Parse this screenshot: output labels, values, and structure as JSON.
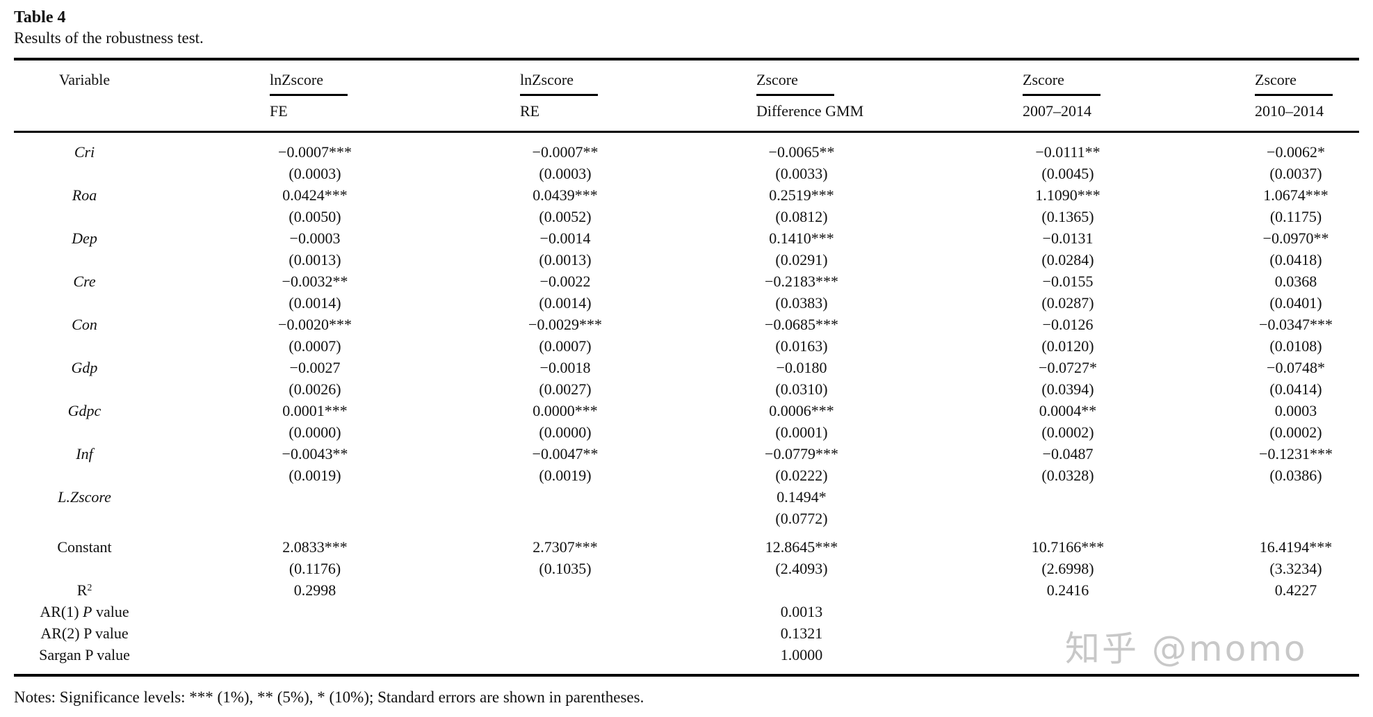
{
  "title": "Table 4",
  "subtitle": "Results of the robustness test.",
  "notes": "Notes: Significance levels: *** (1%), ** (5%), * (10%); Standard errors are shown in parentheses.",
  "watermark": "知乎 @momo",
  "table": {
    "variable_header": "Variable",
    "models": [
      {
        "dep": "lnZscore",
        "spec": "FE"
      },
      {
        "dep": "lnZscore",
        "spec": "RE"
      },
      {
        "dep": "Zscore",
        "spec": "Difference GMM"
      },
      {
        "dep": "Zscore",
        "spec": "2007–2014"
      },
      {
        "dep": "Zscore",
        "spec": "2010–2014"
      }
    ],
    "rows": [
      {
        "variable": "Cri",
        "italic": true,
        "coef": [
          "−0.0007***",
          "−0.0007**",
          "−0.0065**",
          "−0.0111**",
          "−0.0062*"
        ],
        "se": [
          "(0.0003)",
          "(0.0003)",
          "(0.0033)",
          "(0.0045)",
          "(0.0037)"
        ]
      },
      {
        "variable": "Roa",
        "italic": true,
        "coef": [
          "0.0424***",
          "0.0439***",
          "0.2519***",
          "1.1090***",
          "1.0674***"
        ],
        "se": [
          "(0.0050)",
          "(0.0052)",
          "(0.0812)",
          "(0.1365)",
          "(0.1175)"
        ]
      },
      {
        "variable": "Dep",
        "italic": true,
        "coef": [
          "−0.0003",
          "−0.0014",
          "0.1410***",
          "−0.0131",
          "−0.0970**"
        ],
        "se": [
          "(0.0013)",
          "(0.0013)",
          "(0.0291)",
          "(0.0284)",
          "(0.0418)"
        ]
      },
      {
        "variable": "Cre",
        "italic": true,
        "coef": [
          "−0.0032**",
          "−0.0022",
          "−0.2183***",
          "−0.0155",
          "0.0368"
        ],
        "se": [
          "(0.0014)",
          "(0.0014)",
          "(0.0383)",
          "(0.0287)",
          "(0.0401)"
        ]
      },
      {
        "variable": "Con",
        "italic": true,
        "coef": [
          "−0.0020***",
          "−0.0029***",
          "−0.0685***",
          "−0.0126",
          "−0.0347***"
        ],
        "se": [
          "(0.0007)",
          "(0.0007)",
          "(0.0163)",
          "(0.0120)",
          "(0.0108)"
        ]
      },
      {
        "variable": "Gdp",
        "italic": true,
        "coef": [
          "−0.0027",
          "−0.0018",
          "−0.0180",
          "−0.0727*",
          "−0.0748*"
        ],
        "se": [
          "(0.0026)",
          "(0.0027)",
          "(0.0310)",
          "(0.0394)",
          "(0.0414)"
        ]
      },
      {
        "variable": "Gdpc",
        "italic": true,
        "coef": [
          "0.0001***",
          "0.0000***",
          "0.0006***",
          "0.0004**",
          "0.0003"
        ],
        "se": [
          "(0.0000)",
          "(0.0000)",
          "(0.0001)",
          "(0.0002)",
          "(0.0002)"
        ]
      },
      {
        "variable": "Inf",
        "italic": true,
        "coef": [
          "−0.0043**",
          "−0.0047**",
          "−0.0779***",
          "−0.0487",
          "−0.1231***"
        ],
        "se": [
          "(0.0019)",
          "(0.0019)",
          "(0.0222)",
          "(0.0328)",
          "(0.0386)"
        ]
      },
      {
        "variable": "L.Zscore",
        "italic": true,
        "coef": [
          "",
          "",
          "0.1494*",
          "",
          ""
        ],
        "se": [
          "",
          "",
          "(0.0772)",
          "",
          ""
        ]
      },
      {
        "variable": "Constant",
        "italic": false,
        "coef": [
          "2.0833***",
          "2.7307***",
          "12.8645***",
          "10.7166***",
          "16.4194***"
        ],
        "se": [
          "(0.1176)",
          "(0.1035)",
          "(2.4093)",
          "(2.6998)",
          "(3.3234)"
        ]
      }
    ],
    "stat_rows": [
      {
        "label": {
          "pre": "R",
          "sup": "2"
        },
        "values": [
          "0.2998",
          "",
          "",
          "0.2416",
          "0.4227"
        ]
      },
      {
        "label": {
          "pre": "AR(1) ",
          "italic": "P",
          "post": " value"
        },
        "values": [
          "",
          "",
          "0.0013",
          "",
          ""
        ]
      },
      {
        "label": {
          "pre": "AR(2) P value"
        },
        "values": [
          "",
          "",
          "0.1321",
          "",
          ""
        ]
      },
      {
        "label": {
          "pre": "Sargan P value"
        },
        "values": [
          "",
          "",
          "1.0000",
          "",
          ""
        ]
      }
    ]
  }
}
